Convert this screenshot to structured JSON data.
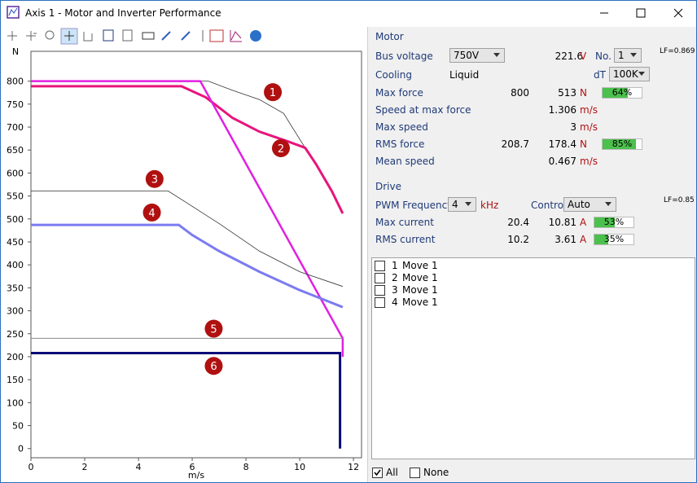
{
  "window": {
    "title": "Axis 1 - Motor and Inverter Performance"
  },
  "chart_data": {
    "type": "line",
    "y_label": "N",
    "x_label": "m/s",
    "xlim": [
      0,
      12.3
    ],
    "ylim": [
      -20,
      865
    ],
    "xticks": [
      0,
      2,
      4,
      6,
      8,
      10,
      12
    ],
    "yticks": [
      0,
      50,
      100,
      150,
      200,
      250,
      300,
      350,
      400,
      450,
      500,
      550,
      600,
      650,
      700,
      750,
      800
    ],
    "grid": false,
    "series": [
      {
        "color": "#333333",
        "width": 0.8,
        "x": [
          0,
          6.6,
          7.5,
          8.5,
          9.4,
          10.2
        ],
        "values": [
          800,
          800,
          780,
          760,
          730,
          655
        ]
      },
      {
        "color": "#e8147c",
        "width": 3,
        "x": [
          0,
          5.6,
          6.5,
          7.5,
          8.5,
          9.5,
          10.2,
          10.6,
          11.2,
          11.6
        ],
        "values": [
          789,
          789,
          765,
          720,
          690,
          670,
          655,
          620,
          560,
          512
        ]
      },
      {
        "color": "#e020e0",
        "width": 2.5,
        "x": [
          0,
          6.3,
          11.6,
          11.6
        ],
        "values": [
          800,
          800,
          240,
          200
        ]
      },
      {
        "color": "#333333",
        "width": 0.8,
        "x": [
          0,
          5.1,
          5.8,
          7,
          8.5,
          10,
          11.6
        ],
        "values": [
          561,
          561,
          535,
          490,
          430,
          385,
          353
        ]
      },
      {
        "color": "#7b7bf0",
        "width": 3,
        "x": [
          0,
          5.5,
          6,
          7,
          8.5,
          10,
          11.6
        ],
        "values": [
          487,
          487,
          465,
          430,
          385,
          345,
          308
        ]
      },
      {
        "color": "#888888",
        "width": 1,
        "x": [
          0,
          11.6
        ],
        "values": [
          240,
          240
        ]
      },
      {
        "color": "#0a0a78",
        "width": 3,
        "x": [
          0,
          11.5,
          11.5
        ],
        "values": [
          208,
          208,
          0
        ]
      }
    ],
    "annotations": [
      {
        "text": "1",
        "x": 9.0,
        "y": 776
      },
      {
        "text": "2",
        "x": 9.3,
        "y": 654
      },
      {
        "text": "3",
        "x": 4.6,
        "y": 587
      },
      {
        "text": "4",
        "x": 4.5,
        "y": 514
      },
      {
        "text": "5",
        "x": 6.8,
        "y": 261
      },
      {
        "text": "6",
        "x": 6.8,
        "y": 180
      }
    ]
  },
  "motor": {
    "heading": "Motor",
    "bus_voltage": {
      "label": "Bus voltage",
      "select": "750V",
      "value": "221.6",
      "unit": "V"
    },
    "number": {
      "label": "No.",
      "select": "1"
    },
    "lf": "LF=0.869",
    "cooling": {
      "label": "Cooling",
      "value": "Liquid"
    },
    "dt": {
      "label": "dT",
      "select": "100K"
    },
    "max_force": {
      "label": "Max force",
      "value1": "800",
      "value2": "513",
      "unit": "N",
      "load": {
        "value": 64,
        "label": "64%"
      }
    },
    "speed_at_max_force": {
      "label": "Speed at max force",
      "value": "1.306",
      "unit": "m/s"
    },
    "max_speed": {
      "label": "Max speed",
      "value": "3",
      "unit": "m/s"
    },
    "rms_force": {
      "label": "RMS force",
      "value1": "208.7",
      "value2": "178.4",
      "unit": "N",
      "load": {
        "value": 85,
        "label": "85%"
      }
    },
    "mean_speed": {
      "label": "Mean speed",
      "value": "0.467",
      "unit": "m/s"
    }
  },
  "drive": {
    "heading": "Drive",
    "pwm": {
      "label": "PWM Frequency",
      "select": "4",
      "unit": "kHz"
    },
    "control": {
      "label": "Control",
      "select": "Auto"
    },
    "lf": "LF=0.85",
    "max_current": {
      "label": "Max current",
      "value1": "20.4",
      "value2": "10.81",
      "unit": "A",
      "load": {
        "value": 53,
        "label": "53%"
      }
    },
    "rms_current": {
      "label": "RMS current",
      "value1": "10.2",
      "value2": "3.61",
      "unit": "A",
      "load": {
        "value": 35,
        "label": "35%"
      }
    }
  },
  "moves": [
    {
      "number": "1",
      "name": "Move 1"
    },
    {
      "number": "2",
      "name": "Move 1"
    },
    {
      "number": "3",
      "name": "Move 1"
    },
    {
      "number": "4",
      "name": "Move 1"
    }
  ],
  "footer": {
    "all": "All",
    "none": "None"
  }
}
